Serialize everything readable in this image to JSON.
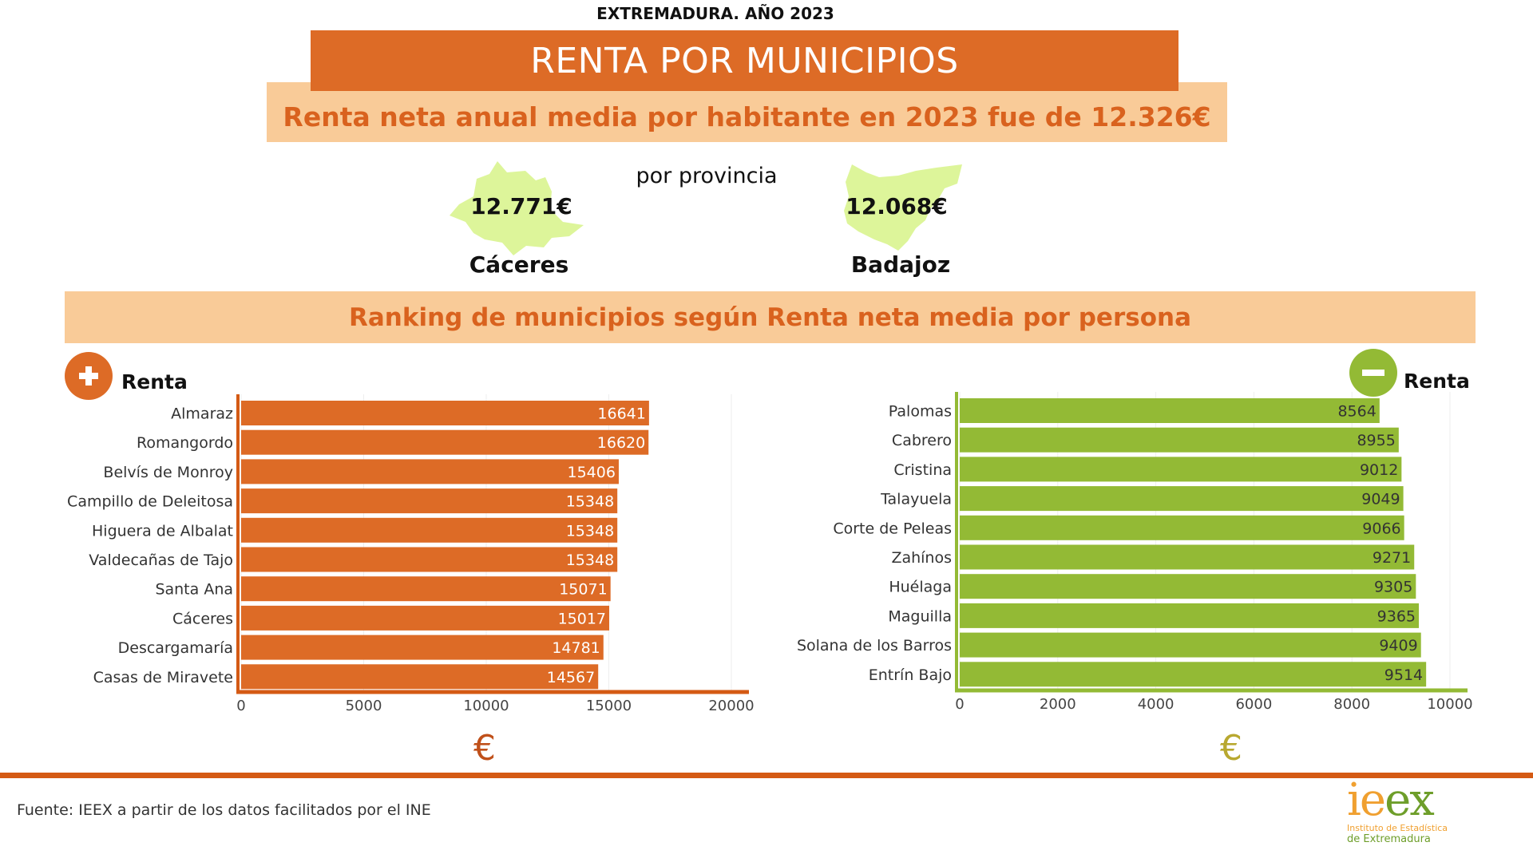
{
  "header": {
    "supertitle": "EXTREMADURA. AÑO 2023",
    "title": "RENTA POR MUNICIPIOS",
    "subtitle": "Renta neta anual media por habitante en 2023 fue de 12.326€"
  },
  "provinces": {
    "label": "por provincia",
    "items": [
      {
        "name": "Cáceres",
        "value": "12.771€"
      },
      {
        "name": "Badajoz",
        "value": "12.068€"
      }
    ],
    "map_color": "#DDF59A"
  },
  "ranking_title": "Ranking de municipios según Renta neta media por persona",
  "chart_data": [
    {
      "type": "bar",
      "orientation": "horizontal",
      "title": "Renta",
      "icon": "plus-circle-icon",
      "color": "#DD6B26",
      "categories": [
        "Almaraz",
        "Romangordo",
        "Belvís de Monroy",
        "Campillo de Deleitosa",
        "Higuera de Albalat",
        "Valdecañas de Tajo",
        "Santa Ana",
        "Cáceres",
        "Descargamaría",
        "Casas de Miravete"
      ],
      "values": [
        16641,
        16620,
        15406,
        15348,
        15348,
        15348,
        15071,
        15017,
        14781,
        14567
      ],
      "xlim": [
        0,
        20000
      ],
      "xticks": [
        "0",
        "5000",
        "10000",
        "15000",
        "20000"
      ],
      "xlabel": "€",
      "grid": true
    },
    {
      "type": "bar",
      "orientation": "horizontal",
      "title": "Renta",
      "icon": "minus-circle-icon",
      "color": "#93BA35",
      "categories": [
        "Palomas",
        "Cabrero",
        "Cristina",
        "Talayuela",
        "Corte de Peleas",
        "Zahínos",
        "Huélaga",
        "Maguilla",
        "Solana de los Barros",
        "Entrín Bajo"
      ],
      "values": [
        8564,
        8955,
        9012,
        9049,
        9066,
        9271,
        9305,
        9365,
        9409,
        9514
      ],
      "xlim": [
        0,
        10000
      ],
      "xticks": [
        "0",
        "2000",
        "4000",
        "6000",
        "8000",
        "10000"
      ],
      "xlabel": "€",
      "grid": true
    }
  ],
  "footer": {
    "source": "Fuente: IEEX a partir de los datos facilitados por el INE",
    "logo_text": "ieex",
    "logo_line1": "Instituto de Estadística",
    "logo_line2": "de Extremadura"
  }
}
